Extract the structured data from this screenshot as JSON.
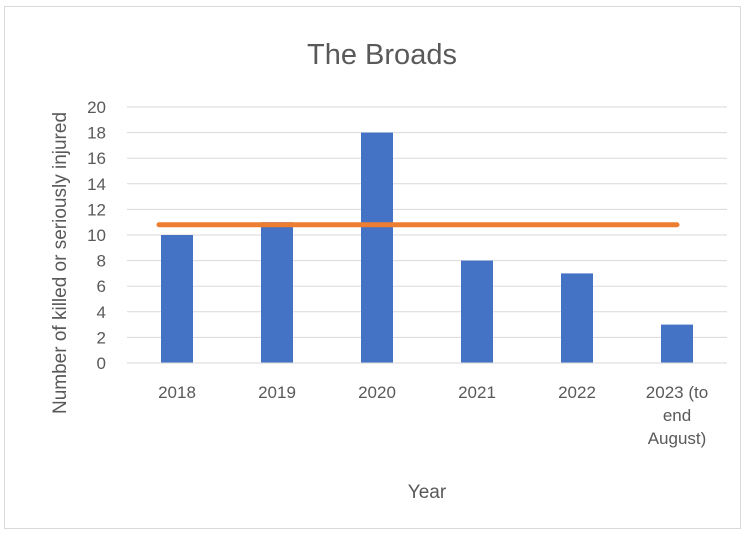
{
  "chart_data": {
    "type": "bar",
    "title": "The Broads",
    "xlabel": "Year",
    "ylabel": "Number of killed or seriously injured",
    "categories": [
      "2018",
      "2019",
      "2020",
      "2021",
      "2022",
      "2023 (to end August)"
    ],
    "category_lines": [
      [
        "2018"
      ],
      [
        "2019"
      ],
      [
        "2020"
      ],
      [
        "2021"
      ],
      [
        "2022"
      ],
      [
        "2023 (to",
        "end",
        "August)"
      ]
    ],
    "series": [
      {
        "values": [
          10,
          11,
          18,
          8,
          7,
          3
        ],
        "color": "#4472c4"
      }
    ],
    "average_line": {
      "value": 10.8,
      "color": "#ed7d31"
    },
    "ylim": [
      0,
      20
    ],
    "yticks": [
      0,
      2,
      4,
      6,
      8,
      10,
      12,
      14,
      16,
      18,
      20
    ],
    "grid": true,
    "legend": "none"
  }
}
